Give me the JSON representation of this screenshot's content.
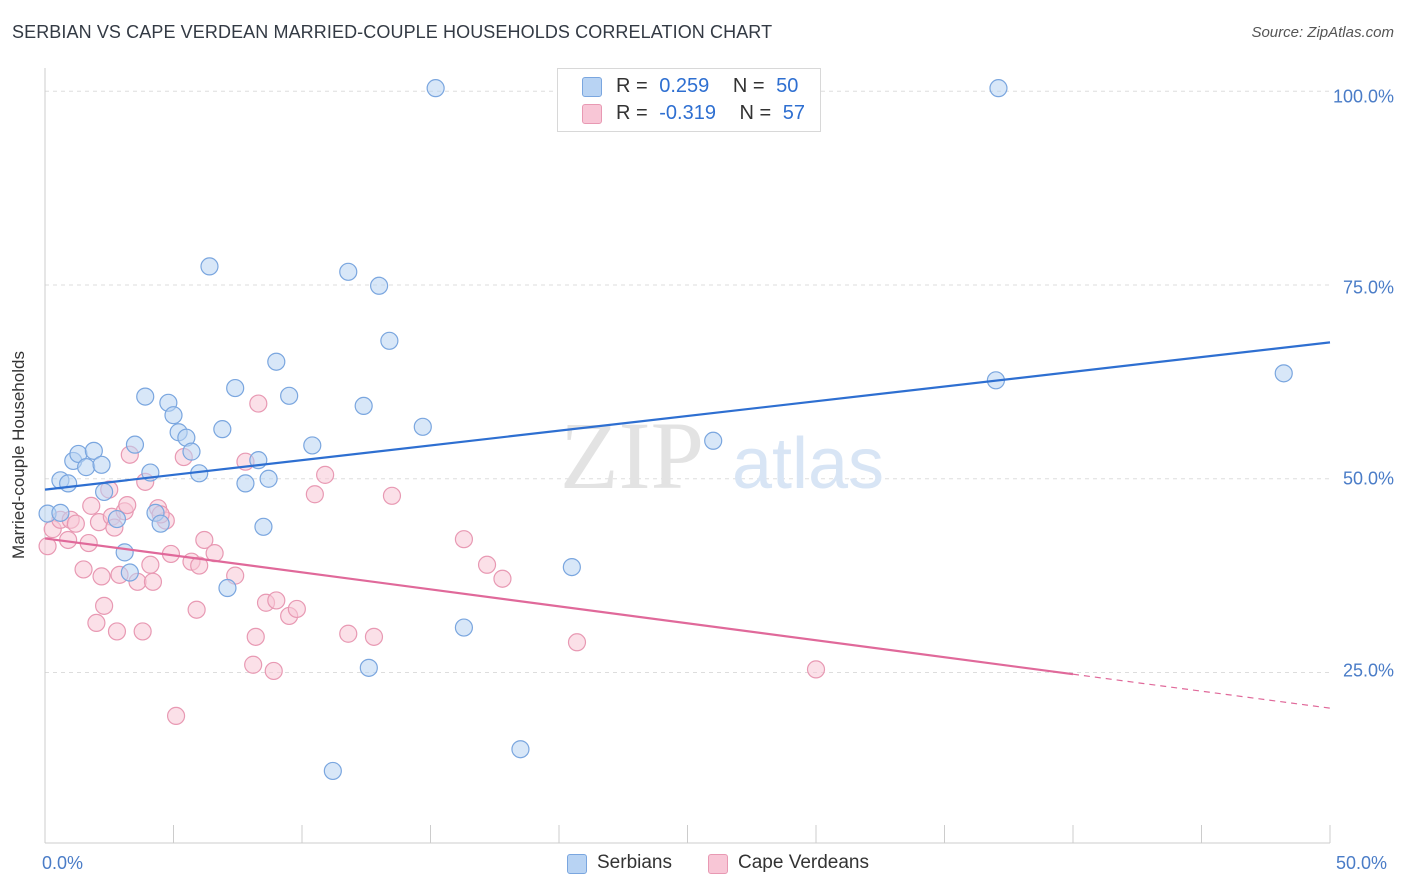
{
  "header": {
    "title": "SERBIAN VS CAPE VERDEAN MARRIED-COUPLE HOUSEHOLDS CORRELATION CHART",
    "source": "Source: ZipAtlas.com"
  },
  "watermark": {
    "zip": "ZIP",
    "atlas": "atlas"
  },
  "legend": {
    "serbians": {
      "r_label": "R =",
      "r_value": "0.259",
      "n_label": "N =",
      "n_value": "50"
    },
    "cape_verdeans": {
      "r_label": "R =",
      "r_value": "-0.319",
      "n_label": "N =",
      "n_value": "57"
    }
  },
  "colors": {
    "serbians_fill": "#b8d3f3",
    "serbians_stroke": "#7aa6df",
    "serbians_line": "#2e6fd1",
    "cape_fill": "#f8c6d6",
    "cape_stroke": "#e899b3",
    "cape_line": "#e0699a",
    "grid": "#dddddd",
    "tick_text": "#4a7cc7"
  },
  "chart_data": {
    "type": "scatter",
    "title": "SERBIAN VS CAPE VERDEAN MARRIED-COUPLE HOUSEHOLDS CORRELATION CHART",
    "xlabel": "",
    "ylabel": "Married-couple Households",
    "xlim": [
      0,
      50
    ],
    "ylim": [
      3,
      103
    ],
    "x_tick_labels": [
      "0.0%",
      "50.0%"
    ],
    "y_ticks": [
      25,
      50,
      75,
      100
    ],
    "y_tick_labels": [
      "25.0%",
      "50.0%",
      "75.0%",
      "100.0%"
    ],
    "grid": true,
    "legend_position": "bottom",
    "series": [
      {
        "name": "Serbians",
        "r": 0.259,
        "n": 50,
        "trend": {
          "x": [
            0,
            50
          ],
          "y": [
            48.6,
            67.6
          ],
          "dashed_from": null
        },
        "points": [
          [
            0.1,
            45.5
          ],
          [
            0.6,
            45.6
          ],
          [
            0.6,
            49.8
          ],
          [
            0.9,
            49.4
          ],
          [
            1.1,
            52.3
          ],
          [
            1.3,
            53.2
          ],
          [
            1.6,
            51.5
          ],
          [
            1.9,
            53.6
          ],
          [
            2.2,
            51.8
          ],
          [
            2.3,
            48.3
          ],
          [
            2.8,
            44.8
          ],
          [
            3.1,
            40.5
          ],
          [
            3.3,
            37.9
          ],
          [
            3.5,
            54.4
          ],
          [
            3.9,
            60.6
          ],
          [
            4.1,
            50.8
          ],
          [
            4.3,
            45.6
          ],
          [
            4.5,
            44.2
          ],
          [
            4.8,
            59.8
          ],
          [
            5.0,
            58.2
          ],
          [
            5.2,
            56.0
          ],
          [
            5.5,
            55.3
          ],
          [
            5.7,
            53.5
          ],
          [
            6.0,
            50.7
          ],
          [
            6.4,
            77.4
          ],
          [
            6.9,
            56.4
          ],
          [
            7.1,
            35.9
          ],
          [
            7.4,
            61.7
          ],
          [
            7.8,
            49.4
          ],
          [
            8.3,
            52.4
          ],
          [
            8.5,
            43.8
          ],
          [
            8.7,
            50.0
          ],
          [
            9.0,
            65.1
          ],
          [
            9.5,
            60.7
          ],
          [
            10.4,
            54.3
          ],
          [
            11.8,
            76.7
          ],
          [
            12.4,
            59.4
          ],
          [
            12.6,
            25.6
          ],
          [
            13.0,
            74.9
          ],
          [
            13.4,
            67.8
          ],
          [
            14.7,
            56.7
          ],
          [
            15.2,
            100.4
          ],
          [
            16.3,
            30.8
          ],
          [
            18.5,
            15.1
          ],
          [
            20.5,
            38.6
          ],
          [
            26.0,
            54.9
          ],
          [
            37.0,
            62.7
          ],
          [
            37.1,
            100.4
          ],
          [
            48.2,
            63.6
          ],
          [
            11.2,
            12.3
          ]
        ]
      },
      {
        "name": "Cape Verdeans",
        "r": -0.319,
        "n": 57,
        "trend": {
          "x": [
            0,
            50
          ],
          "y": [
            42.3,
            20.4
          ],
          "dashed_from": 40
        },
        "points": [
          [
            0.1,
            41.3
          ],
          [
            0.3,
            43.5
          ],
          [
            0.6,
            44.7
          ],
          [
            0.9,
            42.1
          ],
          [
            1.0,
            44.7
          ],
          [
            1.2,
            44.2
          ],
          [
            1.5,
            38.3
          ],
          [
            1.7,
            41.7
          ],
          [
            1.8,
            46.5
          ],
          [
            2.0,
            31.4
          ],
          [
            2.1,
            44.4
          ],
          [
            2.2,
            37.4
          ],
          [
            2.3,
            33.6
          ],
          [
            2.5,
            48.6
          ],
          [
            2.6,
            45.1
          ],
          [
            2.8,
            30.3
          ],
          [
            2.9,
            37.6
          ],
          [
            3.1,
            45.8
          ],
          [
            3.3,
            53.1
          ],
          [
            3.6,
            36.7
          ],
          [
            3.8,
            30.3
          ],
          [
            3.9,
            49.6
          ],
          [
            4.1,
            38.9
          ],
          [
            4.2,
            36.7
          ],
          [
            4.4,
            46.2
          ],
          [
            4.7,
            44.6
          ],
          [
            4.9,
            40.3
          ],
          [
            5.1,
            19.4
          ],
          [
            5.4,
            52.8
          ],
          [
            5.7,
            39.3
          ],
          [
            5.9,
            33.1
          ],
          [
            6.2,
            42.1
          ],
          [
            6.6,
            40.4
          ],
          [
            7.4,
            37.5
          ],
          [
            7.8,
            52.2
          ],
          [
            8.1,
            26.0
          ],
          [
            8.2,
            29.6
          ],
          [
            8.6,
            34.0
          ],
          [
            8.9,
            25.2
          ],
          [
            9.0,
            34.3
          ],
          [
            9.5,
            32.3
          ],
          [
            9.8,
            33.2
          ],
          [
            10.5,
            48.0
          ],
          [
            10.9,
            50.5
          ],
          [
            11.8,
            30.0
          ],
          [
            12.8,
            29.6
          ],
          [
            13.5,
            47.8
          ],
          [
            16.3,
            42.2
          ],
          [
            17.2,
            38.9
          ],
          [
            17.8,
            37.1
          ],
          [
            20.7,
            28.9
          ],
          [
            30.0,
            25.4
          ],
          [
            8.3,
            59.7
          ],
          [
            4.5,
            45.4
          ],
          [
            3.2,
            46.6
          ],
          [
            2.7,
            43.7
          ],
          [
            6.0,
            38.8
          ]
        ]
      }
    ]
  },
  "bottom_legend": {
    "serbians": "Serbians",
    "cape_verdeans": "Cape Verdeans"
  }
}
